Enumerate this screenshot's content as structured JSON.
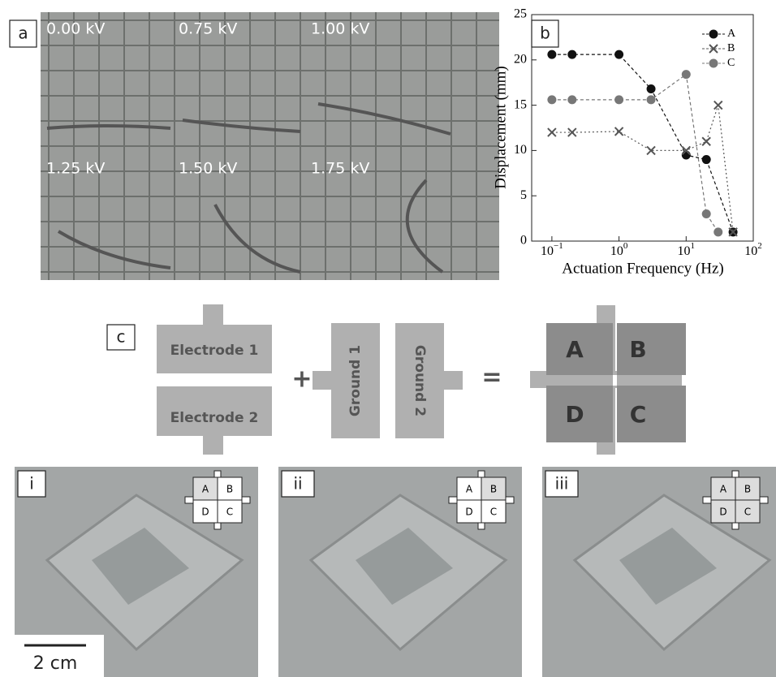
{
  "panel_a": {
    "label": "a",
    "frames": [
      "0.00 kV",
      "0.75 kV",
      "1.00 kV",
      "1.25 kV",
      "1.50 kV",
      "1.75 kV"
    ]
  },
  "chart_data": {
    "type": "line",
    "panel_label": "b",
    "xlabel": "Actuation Frequency (Hz)",
    "ylabel": "Displacement (mm)",
    "log_x": true,
    "xlim": [
      0.05,
      100
    ],
    "ylim": [
      0,
      25
    ],
    "xticks": [
      {
        "value": 0.1,
        "label": "10",
        "exponent": "−1"
      },
      {
        "value": 1,
        "label": "10",
        "exponent": "0"
      },
      {
        "value": 10,
        "label": "10",
        "exponent": "1"
      },
      {
        "value": 100,
        "label": "10",
        "exponent": "2"
      }
    ],
    "yticks": [
      0,
      5,
      10,
      15,
      20,
      25
    ],
    "legend": "upper-right",
    "series": [
      {
        "name": "A",
        "color": "#111111",
        "marker": "circle",
        "x": [
          0.1,
          0.2,
          1,
          3,
          10,
          20,
          50
        ],
        "values": [
          20.6,
          20.6,
          20.6,
          16.8,
          9.5,
          9,
          1
        ]
      },
      {
        "name": "B",
        "color": "#555555",
        "marker": "cross",
        "x": [
          0.1,
          0.2,
          1,
          3,
          10,
          20,
          30,
          50
        ],
        "values": [
          12,
          12,
          12.1,
          10,
          10,
          11,
          15,
          1
        ]
      },
      {
        "name": "C",
        "color": "#777777",
        "marker": "circle",
        "x": [
          0.1,
          0.2,
          1,
          3,
          10,
          20,
          30
        ],
        "values": [
          15.6,
          15.6,
          15.6,
          15.6,
          18.4,
          3,
          1
        ]
      }
    ]
  },
  "panel_c": {
    "label": "c",
    "electrodes": [
      "Electrode 1",
      "Electrode 2"
    ],
    "grounds": [
      "Ground 1",
      "Ground 2"
    ],
    "plus": "+",
    "equals": "=",
    "quadrants": [
      "A",
      "B",
      "D",
      "C"
    ]
  },
  "photos": [
    {
      "label": "i",
      "inset": [
        "A",
        "B",
        "D",
        "C"
      ]
    },
    {
      "label": "ii",
      "inset": [
        "A",
        "B",
        "D",
        "C"
      ]
    },
    {
      "label": "iii",
      "inset": [
        "A",
        "B",
        "D",
        "C"
      ]
    }
  ],
  "scale_bar": "2 cm"
}
